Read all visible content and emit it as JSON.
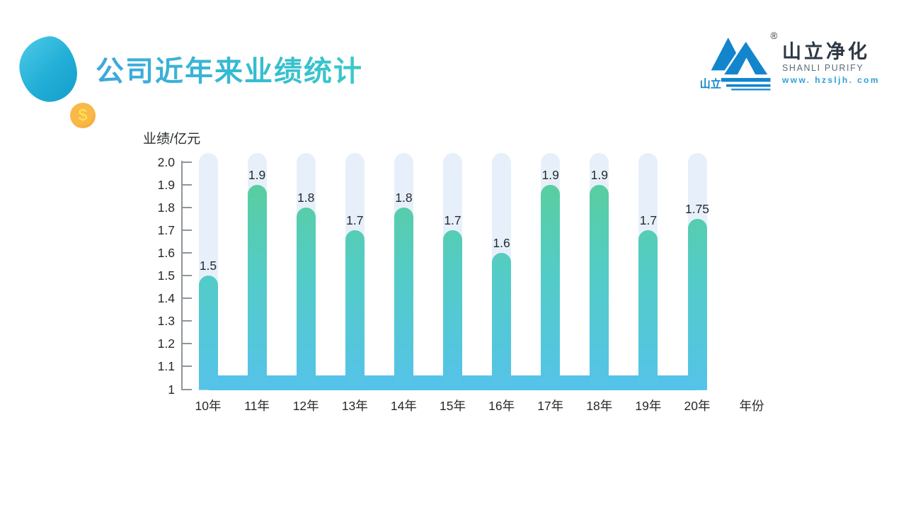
{
  "header": {
    "title": "公司近年来业绩统计"
  },
  "decor": {
    "coin_symbol": "$",
    "blob_color_top": "#47c7e6",
    "blob_color_bottom": "#16a0cc",
    "coin_color": "#f2a437"
  },
  "logo": {
    "mark_text": "山立",
    "registered_mark": "®",
    "cn_name": "山立净化",
    "en_name": "SHANLI PURIFY",
    "website": "www. hzsljh. com",
    "brand_blue": "#1285cc"
  },
  "chart_data": {
    "type": "bar",
    "title": "公司近年来业绩统计",
    "ylabel": "业绩/亿元",
    "xlabel": "年份",
    "categories": [
      "10年",
      "11年",
      "12年",
      "13年",
      "14年",
      "15年",
      "16年",
      "17年",
      "18年",
      "19年",
      "20年"
    ],
    "values": [
      1.5,
      1.9,
      1.8,
      1.7,
      1.8,
      1.7,
      1.6,
      1.9,
      1.9,
      1.7,
      1.75
    ],
    "value_labels": [
      "1.5",
      "1.9",
      "1.8",
      "1.7",
      "1.8",
      "1.7",
      "1.6",
      "1.9",
      "1.9",
      "1.7",
      "1.75"
    ],
    "ylim": [
      1,
      2
    ],
    "yticks": [
      "2.0",
      "1.9",
      "1.8",
      "1.7",
      "1.6",
      "1.5",
      "1.4",
      "1.3",
      "1.2",
      "1.1",
      "1"
    ],
    "grid": false,
    "legend": "none",
    "bar_gradient_top": "#5bce92",
    "bar_gradient_mid": "#53ccc6",
    "bar_gradient_bottom": "#55c3e9",
    "track_color": "#e7f0fa",
    "axis_color": "#8f959b",
    "label_color": "#26292c"
  }
}
